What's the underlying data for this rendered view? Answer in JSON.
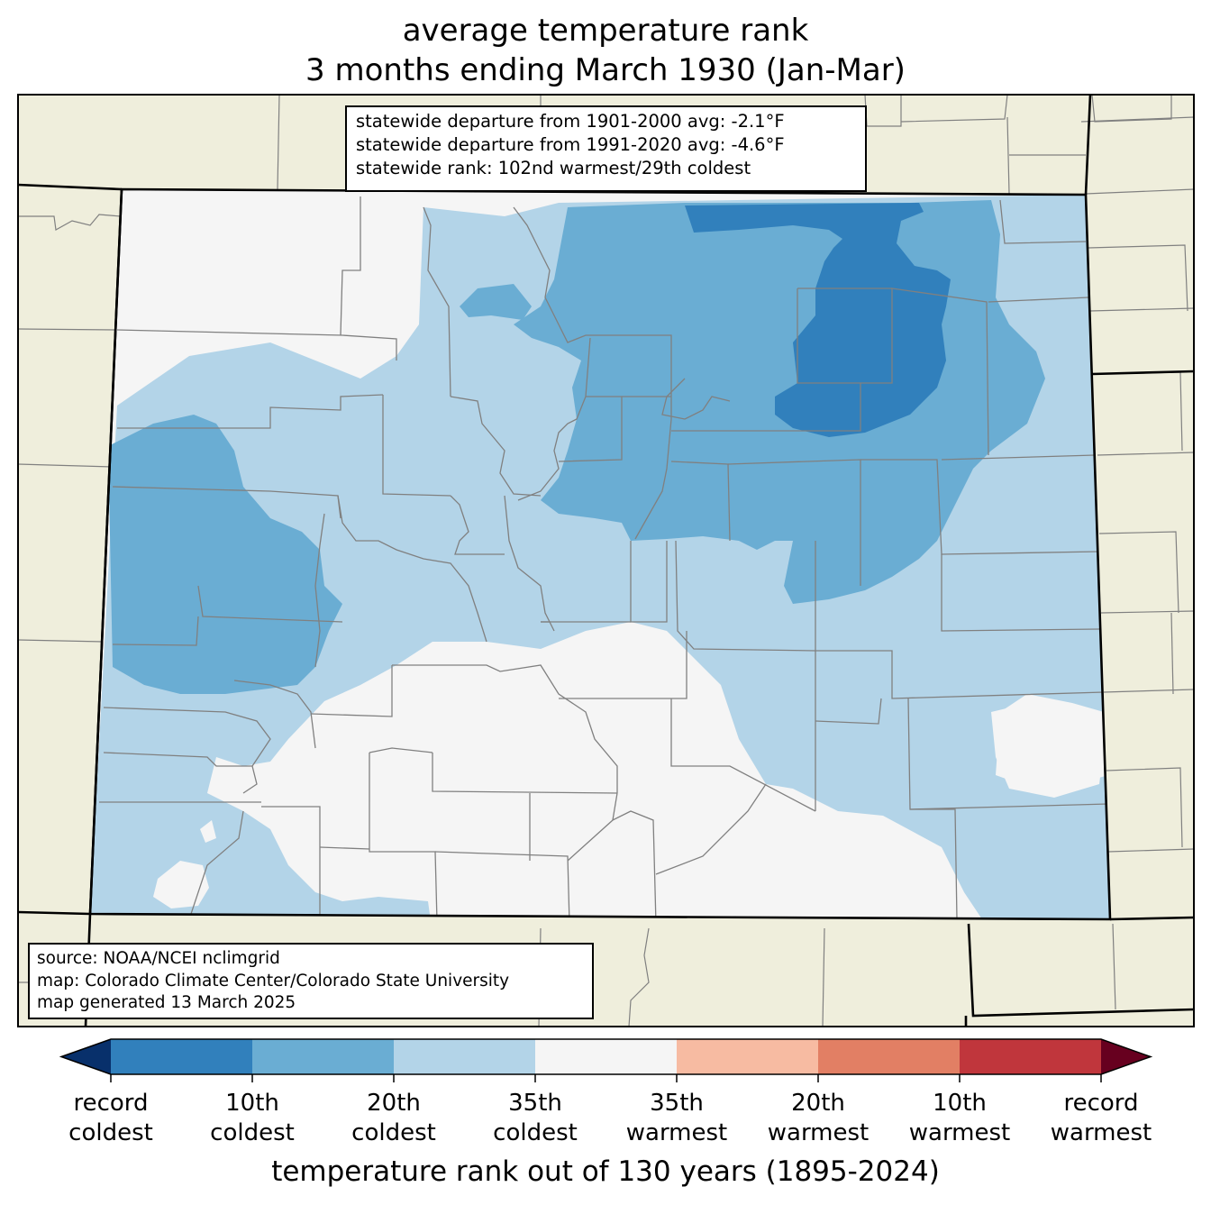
{
  "title": {
    "line1": "average temperature rank",
    "line2": "3 months ending March 1930 (Jan-Mar)"
  },
  "stats": {
    "line1": "statewide departure from 1901-2000 avg: -2.1°F",
    "line2": "statewide departure from 1991-2020 avg: -4.6°F",
    "line3": "statewide rank: 102nd warmest/29th coldest"
  },
  "source": {
    "line1": "source: NOAA/NCEI nclimgrid",
    "line2": "map: Colorado Climate Center/Colorado State University",
    "line3": "map generated 13 March 2025"
  },
  "colorbar": {
    "title": "temperature rank out of 130 years (1895-2024)",
    "labels": [
      {
        "top": "record",
        "bottom": "coldest"
      },
      {
        "top": "10th",
        "bottom": "coldest"
      },
      {
        "top": "20th",
        "bottom": "coldest"
      },
      {
        "top": "35th",
        "bottom": "coldest"
      },
      {
        "top": "35th",
        "bottom": "warmest"
      },
      {
        "top": "20th",
        "bottom": "warmest"
      },
      {
        "top": "10th",
        "bottom": "warmest"
      },
      {
        "top": "record",
        "bottom": "warmest"
      }
    ],
    "colors": [
      "#08306b",
      "#3180bc",
      "#6aadd3",
      "#b3d4e8",
      "#f5f5f5",
      "#f7bba2",
      "#e27f64",
      "#c0363c",
      "#67001f"
    ]
  },
  "map_colors": {
    "background": "#efeedc",
    "record_cold": "#3180bc",
    "rank10_cold": "#6aadd3",
    "rank20_cold": "#b3d4e8",
    "rank35": "#f5f5f5",
    "county_line": "#808080",
    "state_line": "#000000"
  }
}
